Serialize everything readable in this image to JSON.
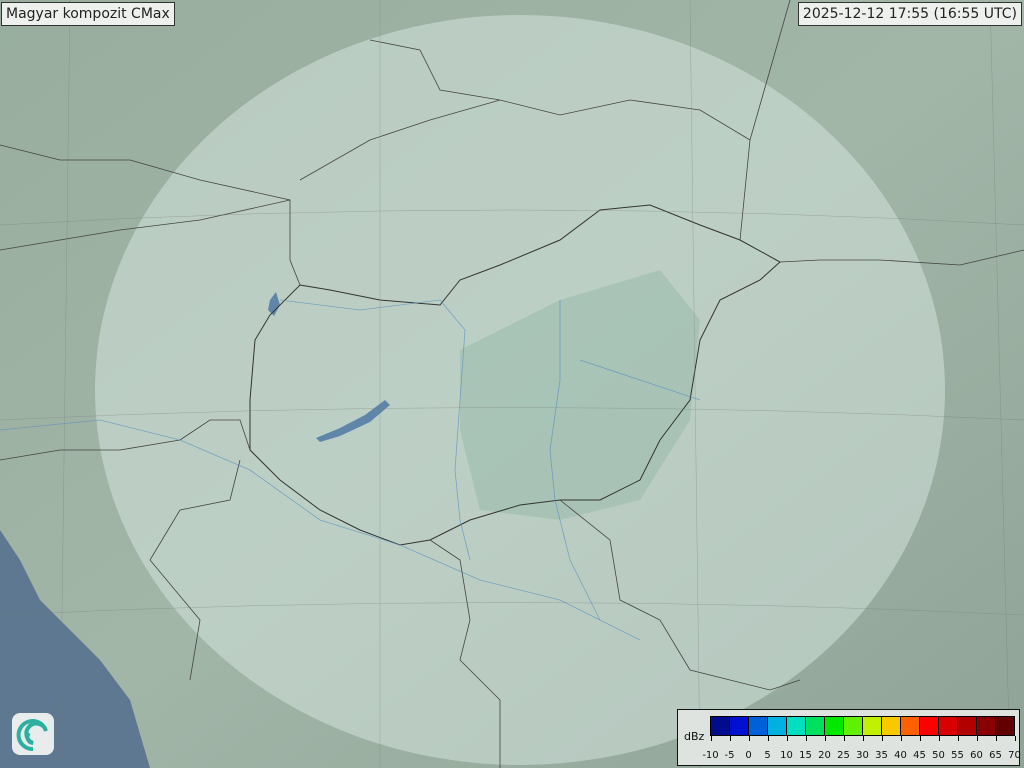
{
  "header": {
    "title": "Magyar kompozit  CMax",
    "timestamp": "2025-12-12 17:55 (16:55 UTC)"
  },
  "legend": {
    "unit": "dBz",
    "ticks": [
      "-10",
      "-5",
      "0",
      "5",
      "10",
      "15",
      "20",
      "25",
      "30",
      "35",
      "40",
      "45",
      "50",
      "55",
      "60",
      "65",
      "70"
    ],
    "colors": [
      "#000c8c",
      "#0010d0",
      "#0060d8",
      "#00b0e0",
      "#00e0c0",
      "#00e060",
      "#00e800",
      "#60f000",
      "#c0f000",
      "#f8c800",
      "#ff6000",
      "#ff0000",
      "#d80000",
      "#b00000",
      "#880000",
      "#600000"
    ]
  },
  "map": {
    "sea_color": "#5d7890",
    "land_color": "#8fa89a",
    "radar_coverage_color": "#c8dcd4",
    "logo_icon": "met-service-swirl-logo"
  }
}
